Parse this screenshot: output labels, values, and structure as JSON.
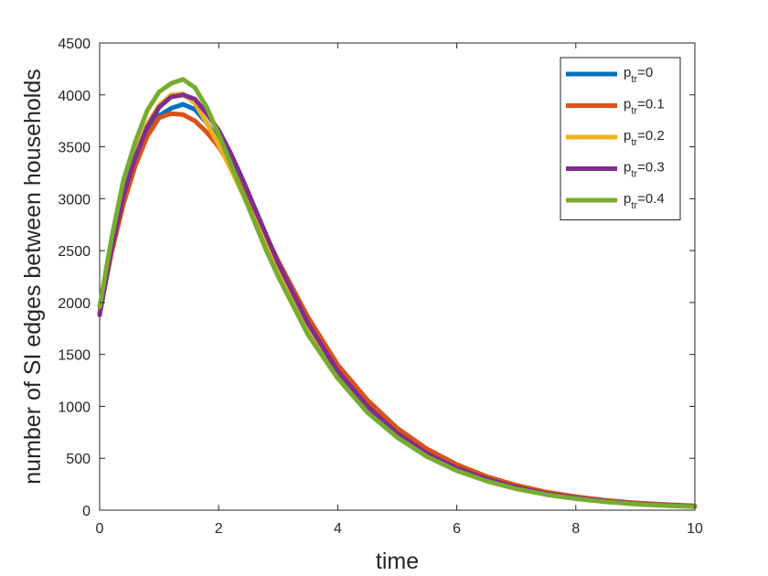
{
  "chart_data": {
    "type": "line",
    "title": "",
    "xlabel": "time",
    "ylabel": "number of SI edges between households",
    "xlim": [
      0,
      10
    ],
    "ylim": [
      0,
      4500
    ],
    "xticks": [
      0,
      2,
      4,
      6,
      8,
      10
    ],
    "yticks": [
      0,
      500,
      1000,
      1500,
      2000,
      2500,
      3000,
      3500,
      4000,
      4500
    ],
    "grid": false,
    "legend_position": "top-right",
    "x": [
      0,
      0.2,
      0.4,
      0.6,
      0.8,
      1.0,
      1.2,
      1.4,
      1.6,
      1.8,
      2.0,
      2.2,
      2.4,
      2.6,
      2.8,
      3.0,
      3.5,
      4.0,
      4.5,
      5.0,
      5.5,
      6.0,
      6.5,
      7.0,
      7.5,
      8.0,
      8.5,
      9.0,
      9.5,
      10.0
    ],
    "series": [
      {
        "name_main": "p",
        "name_sub": "tr",
        "name_suffix": "=0",
        "color": "#0072BD",
        "values": [
          1900,
          2520,
          3000,
          3350,
          3620,
          3800,
          3870,
          3910,
          3860,
          3730,
          3560,
          3360,
          3130,
          2880,
          2620,
          2370,
          1810,
          1360,
          1020,
          760,
          560,
          420,
          310,
          225,
          165,
          120,
          90,
          65,
          50,
          40
        ]
      },
      {
        "name_main": "p",
        "name_sub": "tr",
        "name_suffix": "=0.1",
        "color": "#D95319",
        "values": [
          1900,
          2480,
          2950,
          3320,
          3600,
          3780,
          3820,
          3810,
          3750,
          3640,
          3500,
          3320,
          3110,
          2880,
          2640,
          2400,
          1860,
          1400,
          1060,
          790,
          590,
          440,
          325,
          240,
          175,
          130,
          95,
          70,
          55,
          42
        ]
      },
      {
        "name_main": "p",
        "name_sub": "tr",
        "name_suffix": "=0.2",
        "color": "#EDB120",
        "values": [
          1900,
          2560,
          3060,
          3430,
          3720,
          3900,
          4000,
          4010,
          3920,
          3730,
          3520,
          3290,
          3050,
          2800,
          2550,
          2300,
          1740,
          1310,
          980,
          730,
          540,
          400,
          295,
          215,
          158,
          115,
          85,
          62,
          47,
          35
        ]
      },
      {
        "name_main": "p",
        "name_sub": "tr",
        "name_suffix": "=0.3",
        "color": "#7E2F8E",
        "values": [
          1880,
          2520,
          3030,
          3400,
          3690,
          3880,
          3980,
          4000,
          3960,
          3820,
          3660,
          3440,
          3190,
          2920,
          2650,
          2380,
          1800,
          1340,
          1000,
          740,
          545,
          405,
          300,
          220,
          160,
          118,
          87,
          63,
          48,
          36
        ]
      },
      {
        "name_main": "p",
        "name_sub": "tr",
        "name_suffix": "=0.4",
        "color": "#77AC30",
        "values": [
          1960,
          2620,
          3180,
          3550,
          3850,
          4030,
          4110,
          4150,
          4070,
          3880,
          3620,
          3340,
          3060,
          2780,
          2500,
          2250,
          1690,
          1270,
          940,
          700,
          515,
          380,
          280,
          205,
          150,
          110,
          80,
          58,
          44,
          33
        ]
      }
    ]
  }
}
